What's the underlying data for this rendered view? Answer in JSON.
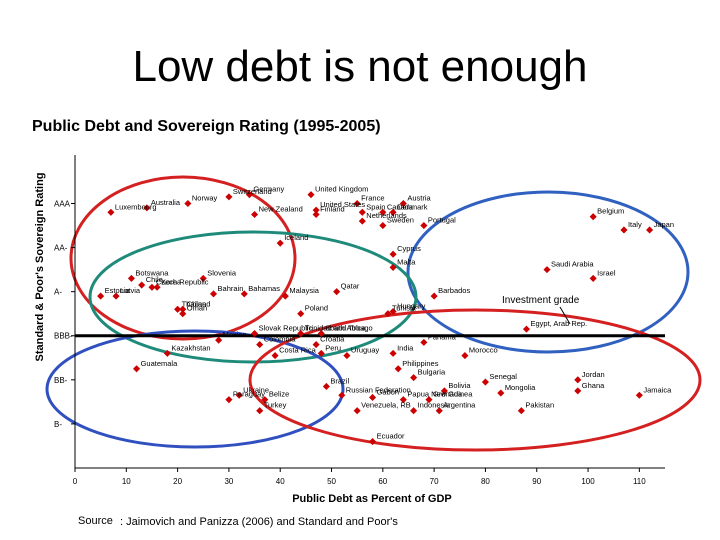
{
  "slide": {
    "title": "Low debt is not enough",
    "source_label": "Source",
    "source_text": ": Jaimovich and Panizza (2006) and Standard and Poor's"
  },
  "chart_data": {
    "type": "scatter",
    "title": "Public Debt and Sovereign Rating (1995-2005)",
    "xlabel": "Public Debt as Percent of GDP",
    "ylabel": "Standard & Poor's Sovereign Rating",
    "xlim": [
      0,
      115
    ],
    "x_ticks": [
      0,
      10,
      20,
      30,
      40,
      50,
      60,
      70,
      80,
      90,
      100,
      110
    ],
    "y_ticks": [
      {
        "label": "AAA",
        "value": 7
      },
      {
        "label": "AA-",
        "value": 6
      },
      {
        "label": "A-",
        "value": 5
      },
      {
        "label": "BBB-",
        "value": 4
      },
      {
        "label": "BB-",
        "value": 3
      },
      {
        "label": "B-",
        "value": 2
      }
    ],
    "ylim": [
      1.0,
      8.1
    ],
    "investment_grade_line": 4.0,
    "annotation": "Investment grade",
    "marker_color": "#cc0000",
    "points": [
      {
        "label": "Switzerland",
        "x": 30,
        "y": 7.15
      },
      {
        "label": "Germany",
        "x": 34,
        "y": 7.2
      },
      {
        "label": "United Kingdom",
        "x": 46,
        "y": 7.2
      },
      {
        "label": "Norway",
        "x": 22,
        "y": 7.0
      },
      {
        "label": "Australia",
        "x": 14,
        "y": 6.9
      },
      {
        "label": "Luxembourg",
        "x": 7,
        "y": 6.8
      },
      {
        "label": "New Zealand",
        "x": 35,
        "y": 6.75
      },
      {
        "label": "France",
        "x": 55,
        "y": 7.0
      },
      {
        "label": "Austria",
        "x": 64,
        "y": 7.0
      },
      {
        "label": "United States",
        "x": 47,
        "y": 6.85
      },
      {
        "label": "Finland",
        "x": 47,
        "y": 6.75
      },
      {
        "label": "Spain",
        "x": 56,
        "y": 6.8
      },
      {
        "label": "Netherlands",
        "x": 56,
        "y": 6.6
      },
      {
        "label": "Canada",
        "x": 60,
        "y": 6.8
      },
      {
        "label": "Denmark",
        "x": 62,
        "y": 6.8
      },
      {
        "label": "Sweden",
        "x": 60,
        "y": 6.5
      },
      {
        "label": "Belgium",
        "x": 101,
        "y": 6.7
      },
      {
        "label": "Portugal",
        "x": 68,
        "y": 6.5
      },
      {
        "label": "Italy",
        "x": 107,
        "y": 6.4
      },
      {
        "label": "Japan",
        "x": 112,
        "y": 6.4
      },
      {
        "label": "Iceland",
        "x": 40,
        "y": 6.1
      },
      {
        "label": "Cyprus",
        "x": 62,
        "y": 5.85
      },
      {
        "label": "Malta",
        "x": 62,
        "y": 5.55
      },
      {
        "label": "Saudi Arabia",
        "x": 92,
        "y": 5.5
      },
      {
        "label": "Israel",
        "x": 101,
        "y": 5.3
      },
      {
        "label": "Botswana",
        "x": 11,
        "y": 5.3
      },
      {
        "label": "Chile",
        "x": 13,
        "y": 5.15
      },
      {
        "label": "Slovenia",
        "x": 25,
        "y": 5.3
      },
      {
        "label": "Czech Republic",
        "x": 15,
        "y": 5.1
      },
      {
        "label": "Korea",
        "x": 16,
        "y": 5.1
      },
      {
        "label": "Estonia",
        "x": 5,
        "y": 4.9
      },
      {
        "label": "Latvia",
        "x": 8,
        "y": 4.9
      },
      {
        "label": "Bahrain",
        "x": 27,
        "y": 4.95
      },
      {
        "label": "Bahamas",
        "x": 33,
        "y": 4.95
      },
      {
        "label": "Malaysia",
        "x": 41,
        "y": 4.9
      },
      {
        "label": "Qatar",
        "x": 51,
        "y": 5.0
      },
      {
        "label": "Barbados",
        "x": 70,
        "y": 4.9
      },
      {
        "label": "Thailand",
        "x": 20,
        "y": 4.6
      },
      {
        "label": "China",
        "x": 21,
        "y": 4.6
      },
      {
        "label": "Oman",
        "x": 21,
        "y": 4.5
      },
      {
        "label": "Poland",
        "x": 44,
        "y": 4.5
      },
      {
        "label": "Hungary",
        "x": 62,
        "y": 4.55
      },
      {
        "label": "Tunisia",
        "x": 61,
        "y": 4.5
      },
      {
        "label": "Egypt, Arab Rep.",
        "x": 88,
        "y": 4.15
      },
      {
        "label": "Slovak Republic",
        "x": 35,
        "y": 4.05
      },
      {
        "label": "Trinidad and Tobago",
        "x": 44,
        "y": 4.05
      },
      {
        "label": "South Africa",
        "x": 48,
        "y": 4.05
      },
      {
        "label": "Mexico",
        "x": 28,
        "y": 3.9
      },
      {
        "label": "Colombia",
        "x": 36,
        "y": 3.8
      },
      {
        "label": "Croatia",
        "x": 47,
        "y": 3.8
      },
      {
        "label": "Panama",
        "x": 68,
        "y": 3.85
      },
      {
        "label": "Kazakhstan",
        "x": 18,
        "y": 3.6
      },
      {
        "label": "Costa Rica",
        "x": 39,
        "y": 3.55
      },
      {
        "label": "Peru",
        "x": 48,
        "y": 3.6
      },
      {
        "label": "Uruguay",
        "x": 53,
        "y": 3.55
      },
      {
        "label": "India",
        "x": 62,
        "y": 3.6
      },
      {
        "label": "Morocco",
        "x": 76,
        "y": 3.55
      },
      {
        "label": "Guatemala",
        "x": 12,
        "y": 3.25
      },
      {
        "label": "Philippines",
        "x": 63,
        "y": 3.25
      },
      {
        "label": "Bulgaria",
        "x": 66,
        "y": 3.05
      },
      {
        "label": "Senegal",
        "x": 80,
        "y": 2.95
      },
      {
        "label": "Jordan",
        "x": 98,
        "y": 3.0
      },
      {
        "label": "Brazil",
        "x": 49,
        "y": 2.85
      },
      {
        "label": "Bolivia",
        "x": 72,
        "y": 2.75
      },
      {
        "label": "Mongolia",
        "x": 83,
        "y": 2.7
      },
      {
        "label": "Ghana",
        "x": 98,
        "y": 2.75
      },
      {
        "label": "Jamaica",
        "x": 110,
        "y": 2.65
      },
      {
        "label": "Ukraine",
        "x": 32,
        "y": 2.65
      },
      {
        "label": "Paraguay",
        "x": 30,
        "y": 2.55
      },
      {
        "label": "Belize",
        "x": 37,
        "y": 2.55
      },
      {
        "label": "Russian Federation",
        "x": 52,
        "y": 2.65
      },
      {
        "label": "Gabon",
        "x": 58,
        "y": 2.6
      },
      {
        "label": "Papua New Guinea",
        "x": 64,
        "y": 2.55
      },
      {
        "label": "Grenada",
        "x": 69,
        "y": 2.55
      },
      {
        "label": "Turkey",
        "x": 36,
        "y": 2.3
      },
      {
        "label": "Venezuela, RB",
        "x": 55,
        "y": 2.3
      },
      {
        "label": "Indonesia",
        "x": 66,
        "y": 2.3
      },
      {
        "label": "Argentina",
        "x": 71,
        "y": 2.3
      },
      {
        "label": "Pakistan",
        "x": 87,
        "y": 2.3
      },
      {
        "label": "Ecuador",
        "x": 58,
        "y": 1.6
      }
    ]
  }
}
